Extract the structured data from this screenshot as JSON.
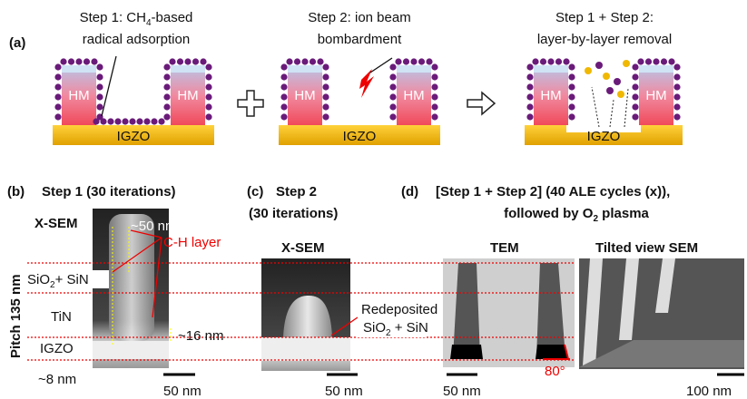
{
  "panel_a": {
    "label": "(a)",
    "step1": {
      "line1": {
        "text": "Step 1: CH",
        "sub": "4",
        "tail": "-based"
      },
      "line2": "radical adsorption",
      "hm": [
        "HM",
        "HM"
      ],
      "substrate": "IGZO"
    },
    "step2": {
      "line1": "Step 2: ion beam",
      "line2": "bombardment",
      "hm": [
        "HM",
        "HM"
      ],
      "substrate": "IGZO"
    },
    "step3": {
      "line1": "Step 1 + Step 2:",
      "line2": "layer-by-layer removal",
      "hm": [
        "HM",
        "HM"
      ],
      "substrate": "IGZO"
    }
  },
  "panel_b": {
    "label": "(b)",
    "title": "Step 1 (30 iterations)",
    "method": "X-SEM",
    "dim_top": "~50 nm",
    "ch_layer": "C-H layer",
    "oxide": {
      "text": "SiO",
      "sub": "2",
      "tail": "+ SiN"
    },
    "tin": "TiN",
    "igzo": "IGZO",
    "dim_side": "~16 nm",
    "dim_bottom": "~8 nm",
    "scale": "50 nm",
    "pitch": "Pitch 135 nm"
  },
  "panel_c": {
    "label": "(c)",
    "title_line1": "Step 2",
    "title_line2": "(30 iterations)",
    "method": "X-SEM",
    "redeposited": "Redeposited",
    "oxide": {
      "text": "SiO",
      "sub": "2",
      "tail": " + SiN"
    },
    "scale": "50 nm"
  },
  "panel_d": {
    "label": "(d)",
    "title_line1": "[Step 1 + Step 2] (40 ALE cycles (x)),",
    "title_line2": {
      "text": "followed by O",
      "sub": "2",
      "tail": " plasma"
    },
    "tem": "TEM",
    "sem": "Tilted view SEM",
    "angle": "80°",
    "tem_scale": "50 nm",
    "sem_scale": "100 nm"
  }
}
